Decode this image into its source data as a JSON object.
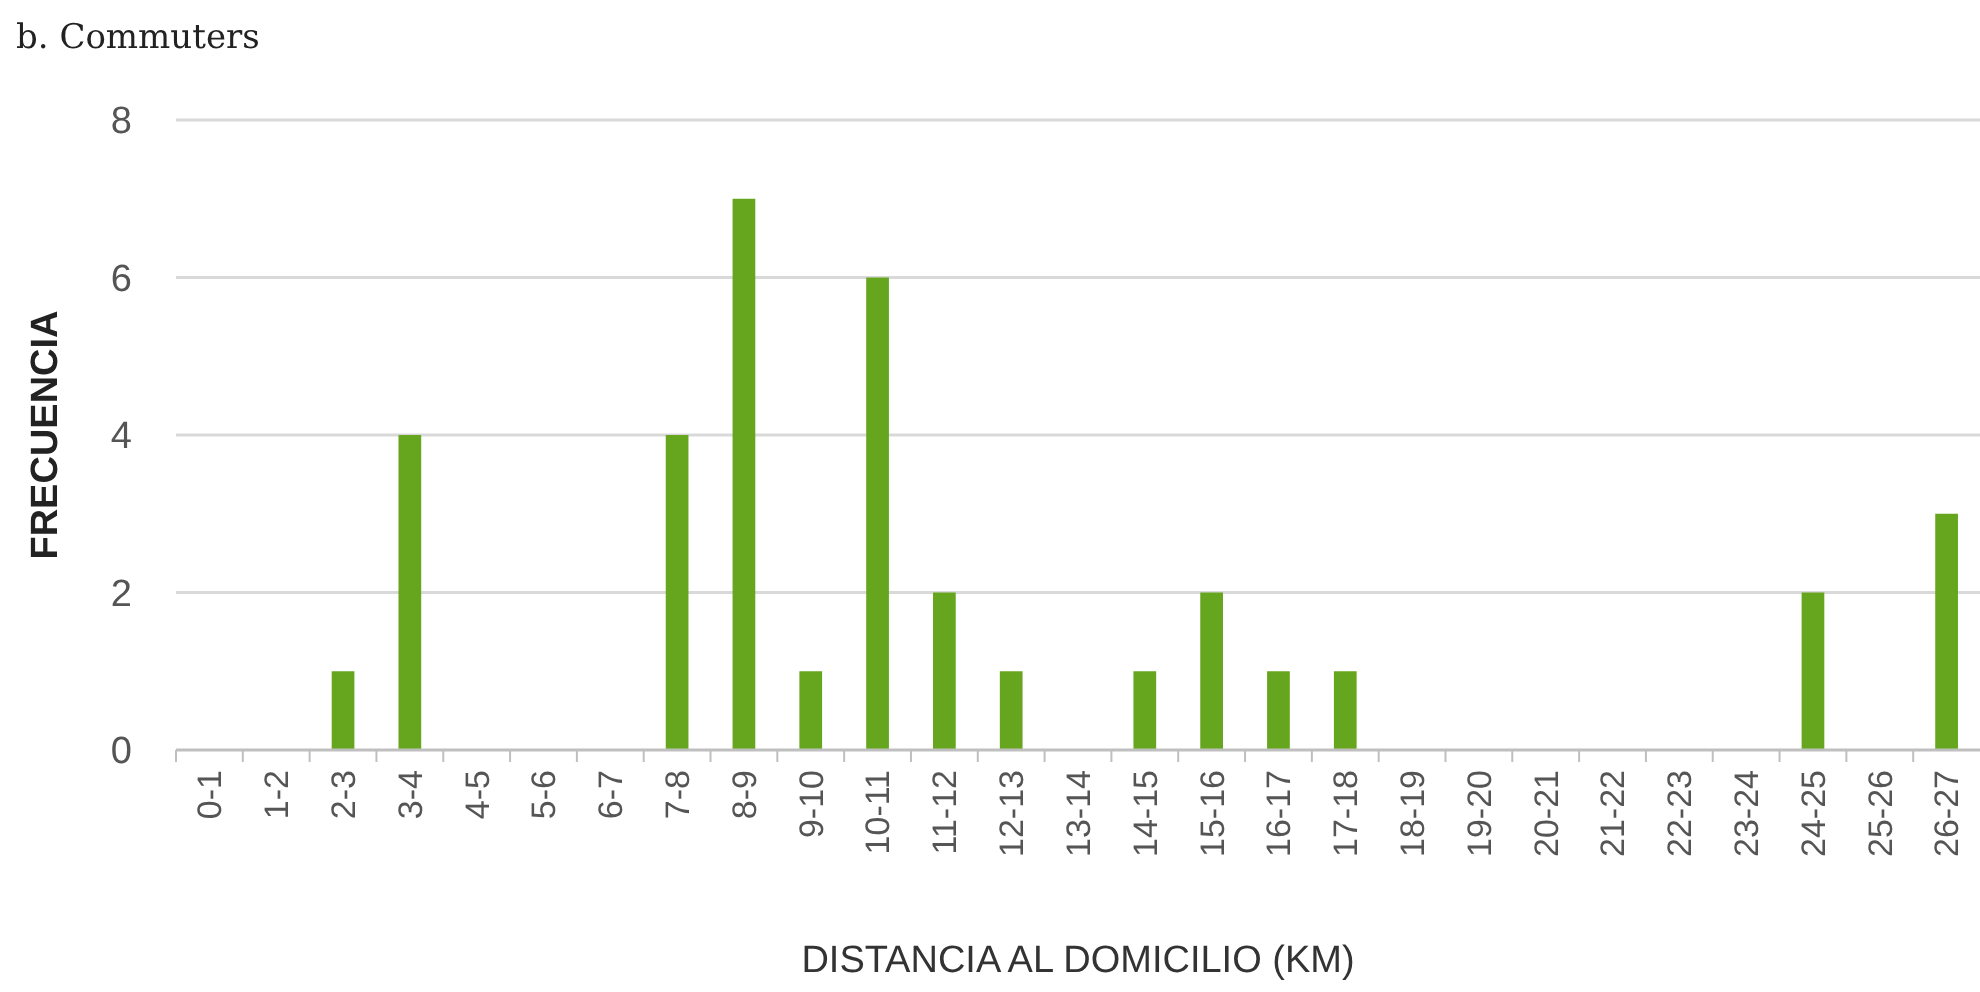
{
  "chart_data": {
    "type": "bar",
    "title": "b. Commuters",
    "xlabel": "DISTANCIA AL DOMICILIO (KM)",
    "ylabel": "FRECUENCIA",
    "categories": [
      "0-1",
      "1-2",
      "2-3",
      "3-4",
      "4-5",
      "5-6",
      "6-7",
      "7-8",
      "8-9",
      "9-10",
      "10-11",
      "11-12",
      "12-13",
      "13-14",
      "14-15",
      "15-16",
      "16-17",
      "17-18",
      "18-19",
      "19-20",
      "20-21",
      "21-22",
      "22-23",
      "23-24",
      "24-25",
      "25-26",
      "26-27"
    ],
    "values": [
      0,
      0,
      1,
      4,
      0,
      0,
      0,
      4,
      7,
      1,
      6,
      2,
      1,
      0,
      1,
      2,
      1,
      1,
      0,
      0,
      0,
      0,
      0,
      0,
      2,
      0,
      3
    ],
    "color": "#66a61e",
    "ylim": [
      0,
      8
    ],
    "yticks": [
      0,
      2,
      4,
      6,
      8
    ],
    "grid": "y"
  }
}
